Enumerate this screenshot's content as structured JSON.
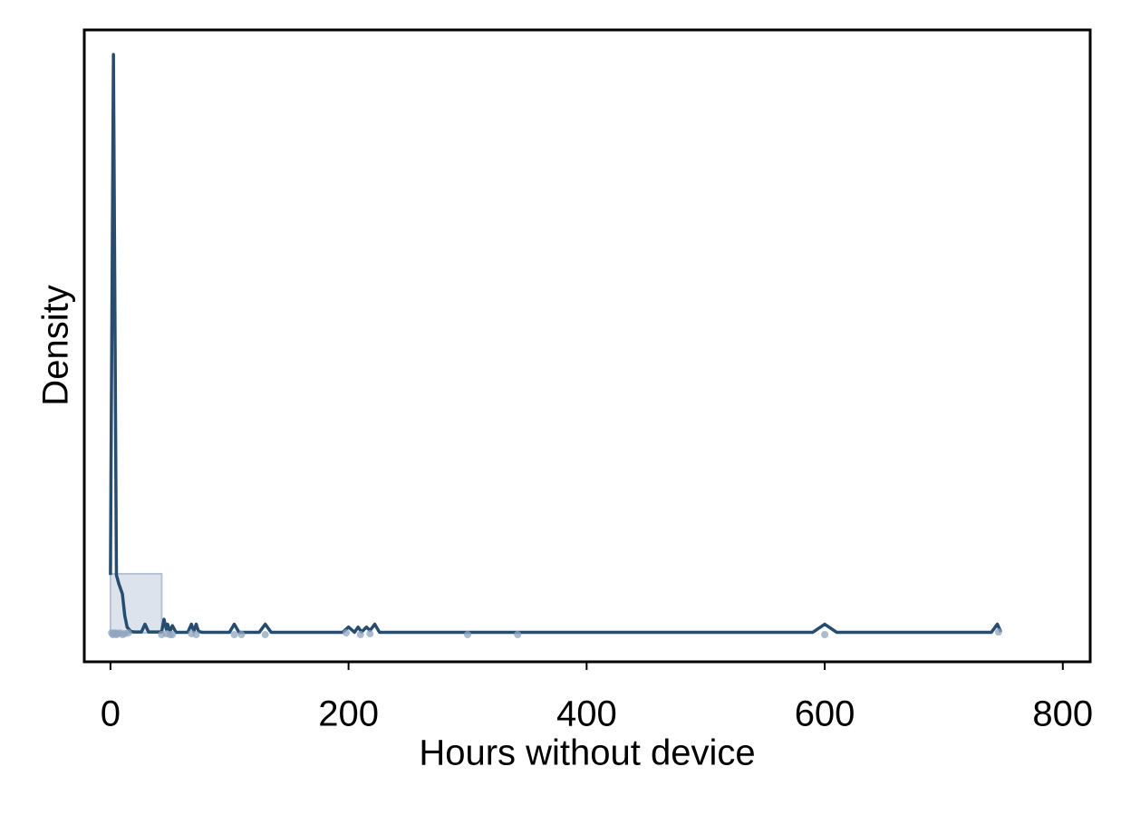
{
  "chart_data": {
    "type": "density",
    "xlabel": "Hours without device",
    "ylabel": "Density",
    "xlim": [
      -22,
      823
    ],
    "ylim": [
      -0.01,
      0.2085
    ],
    "xticks": [
      0,
      200,
      400,
      600,
      800
    ],
    "histogram": {
      "bins": [
        0,
        43
      ],
      "values": [
        0.0204
      ],
      "color": "#dde3ec"
    },
    "kde": {
      "color": "#264d70",
      "x": [
        0,
        0.5,
        2.5,
        5,
        7,
        10,
        12,
        14,
        17,
        20,
        26,
        29,
        32,
        40,
        43,
        45,
        47,
        48,
        50,
        52,
        55,
        65,
        68,
        70,
        72,
        74,
        77,
        100,
        104,
        108,
        125,
        130,
        135,
        195,
        200,
        205,
        208,
        211,
        215,
        218,
        222,
        226,
        590,
        600,
        610,
        740,
        745,
        748
      ],
      "values": [
        0.02,
        0.06,
        0.2,
        0.02,
        0.017,
        0.0135,
        0.006,
        0.002,
        0.0005,
        0.0003,
        0.0003,
        0.003,
        0.0003,
        0.0003,
        0.0004,
        0.0047,
        0.001,
        0.003,
        0.0005,
        0.0025,
        0.0002,
        0.0002,
        0.003,
        0.0005,
        0.003,
        0.0005,
        0.0002,
        0.0002,
        0.003,
        0.0002,
        0.0002,
        0.003,
        0.0002,
        0.0002,
        0.002,
        0.0002,
        0.002,
        0.0003,
        0.002,
        0.0008,
        0.003,
        0.0002,
        0.0002,
        0.003,
        0.0002,
        0.0002,
        0.003,
        0.0003
      ]
    },
    "points": {
      "color": "#8fa6bf",
      "x": [
        1,
        2,
        3,
        4,
        5,
        6,
        8,
        10,
        12,
        15,
        43,
        47,
        50,
        52,
        68,
        72,
        104,
        110,
        130,
        198,
        210,
        218,
        300,
        342,
        600,
        746
      ],
      "values": [
        0,
        -0.0006,
        -0.0003,
        0,
        -0.0006,
        -0.0003,
        0,
        -0.0006,
        -0.0003,
        0,
        -0.0006,
        -0.0003,
        -0.0006,
        -0.0006,
        -0.0003,
        -0.0006,
        -0.0006,
        -0.0006,
        -0.0006,
        0,
        -0.0006,
        -0.0003,
        -0.0006,
        -0.0006,
        -0.0006,
        0.0003
      ]
    }
  }
}
